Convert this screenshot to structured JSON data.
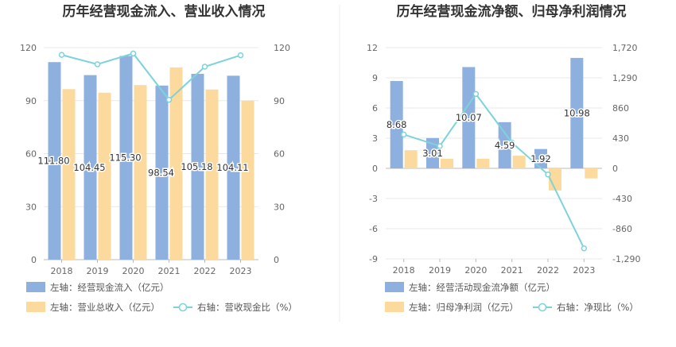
{
  "chart_data": [
    {
      "type": "bar+line",
      "title": "历年经营现金流入、营业收入情况",
      "categories": [
        "2018",
        "2019",
        "2020",
        "2021",
        "2022",
        "2023"
      ],
      "left_axis": {
        "min": 0,
        "max": 120,
        "ticks": [
          "0",
          "30",
          "60",
          "90",
          "120"
        ]
      },
      "right_axis": {
        "min": 0,
        "max": 120,
        "ticks": [
          "0",
          "30",
          "60",
          "90",
          "120"
        ]
      },
      "series": [
        {
          "name": "左轴：经营现金流入（亿元）",
          "kind": "bar",
          "axis": "left",
          "color": "#8eb0de",
          "values": [
            111.8,
            104.45,
            115.3,
            98.54,
            105.18,
            104.11
          ],
          "labels": [
            "111.80",
            "104.45",
            "115.30",
            "98.54",
            "105.18",
            "104.11"
          ]
        },
        {
          "name": "左轴：营业总收入（亿元）",
          "kind": "bar",
          "axis": "left",
          "color": "#fcd99c",
          "values": [
            96.5,
            94.5,
            98.8,
            108.8,
            96.3,
            90.0
          ]
        },
        {
          "name": "右轴：营收现金比（%）",
          "kind": "line",
          "axis": "right",
          "color": "#7dd3da",
          "values": [
            115.9,
            110.6,
            116.7,
            90.5,
            109.2,
            115.7
          ]
        }
      ]
    },
    {
      "type": "bar+line",
      "title": "历年经营现金流净额、归母净利润情况",
      "categories": [
        "2018",
        "2019",
        "2020",
        "2021",
        "2022",
        "2023"
      ],
      "left_axis": {
        "min": -9,
        "max": 12,
        "ticks": [
          "-9",
          "-6",
          "-3",
          "0",
          "3",
          "6",
          "9",
          "12"
        ]
      },
      "right_axis": {
        "min": -1290,
        "max": 1720,
        "ticks": [
          "-1,290",
          "-860",
          "-430",
          "0",
          "430",
          "860",
          "1,290",
          "1,720"
        ]
      },
      "series": [
        {
          "name": "左轴：经营活动现金流净额（亿元）",
          "kind": "bar",
          "axis": "left",
          "color": "#8eb0de",
          "values": [
            8.68,
            3.01,
            10.07,
            4.59,
            1.92,
            10.98
          ],
          "labels": [
            "8.68",
            "3.01",
            "10.07",
            "4.59",
            "1.92",
            "10.98"
          ]
        },
        {
          "name": "左轴：归母净利润（亿元）",
          "kind": "bar",
          "axis": "left",
          "color": "#fcd99c",
          "values": [
            1.8,
            0.95,
            0.95,
            1.25,
            -2.2,
            -1.0
          ]
        },
        {
          "name": "右轴：净现比（%）",
          "kind": "line",
          "axis": "right",
          "color": "#7dd3da",
          "values": [
            482,
            317,
            1060,
            367,
            -87,
            -1140
          ]
        }
      ]
    }
  ]
}
